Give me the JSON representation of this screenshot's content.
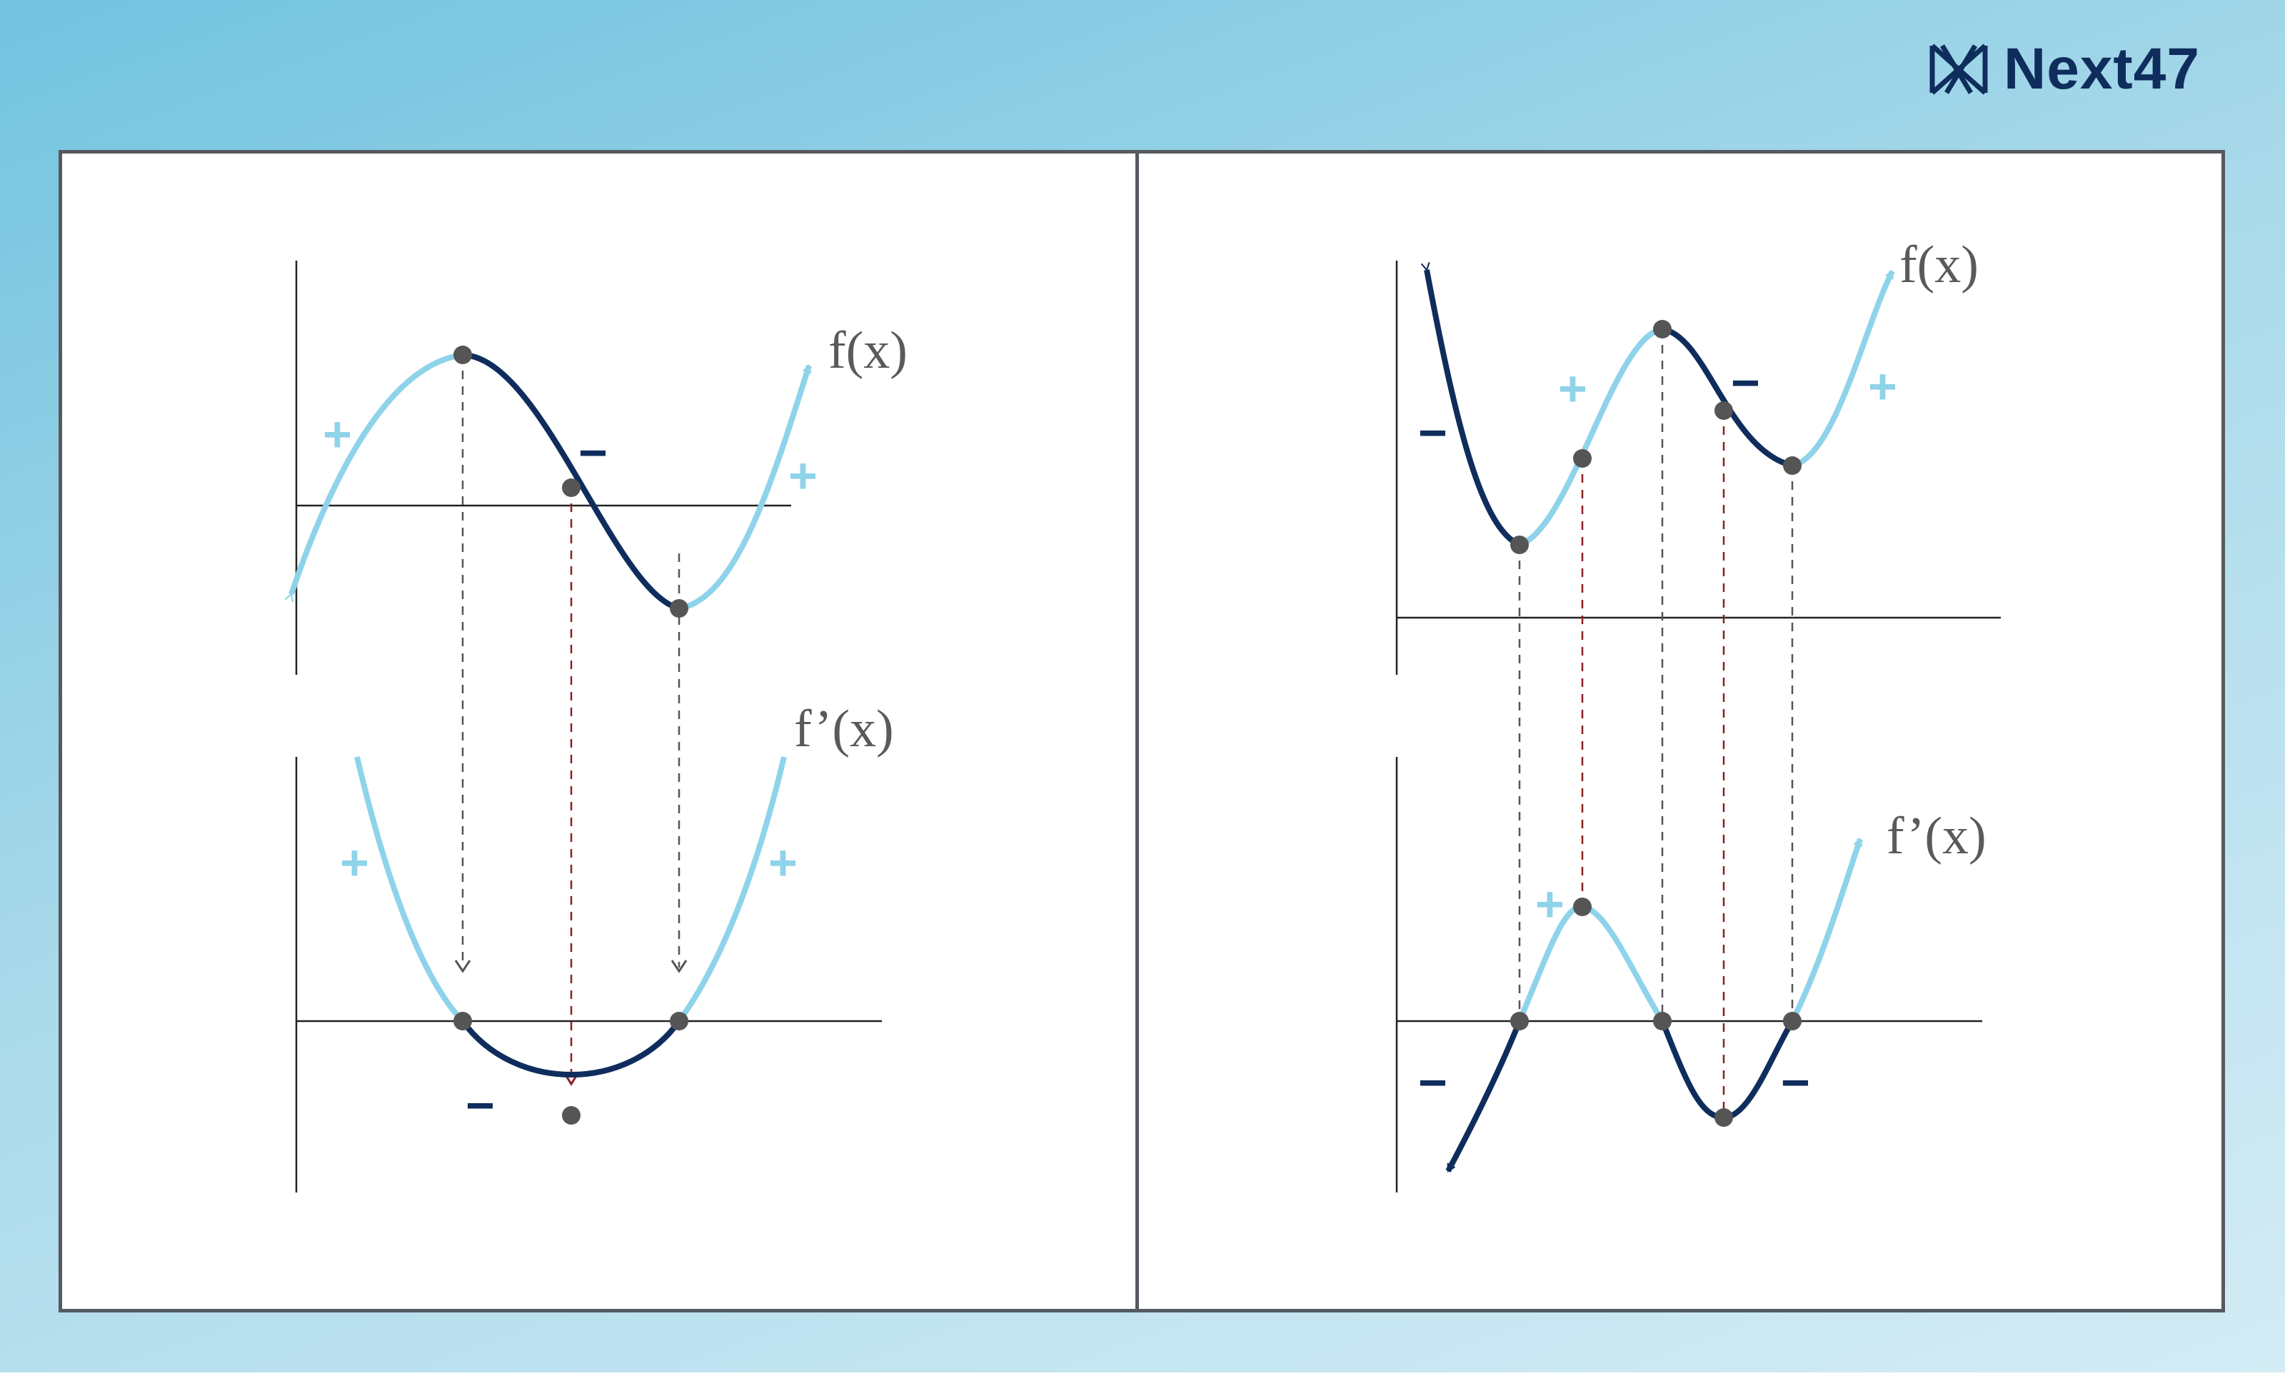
{
  "brand": {
    "name": "Next47",
    "logo_icon": "next47-logo-icon"
  },
  "colors": {
    "increasing": "#8ed3ea",
    "decreasing": "#0f2d5c",
    "point": "#555555",
    "guide_gray": "#555555",
    "guide_red": "#8b2020",
    "axis": "#222222"
  },
  "left_panel": {
    "f_label": "f(x)",
    "fprime_label": "f’(x)",
    "f_signs": [
      "+",
      "−",
      "+"
    ],
    "fprime_signs": [
      "+",
      "−",
      "+"
    ]
  },
  "right_panel": {
    "f_label": "f(x)",
    "fprime_label": "f’(x)",
    "f_signs": [
      "−",
      "+",
      "−",
      "+"
    ],
    "fprime_signs": [
      "−",
      "+",
      "−"
    ]
  }
}
